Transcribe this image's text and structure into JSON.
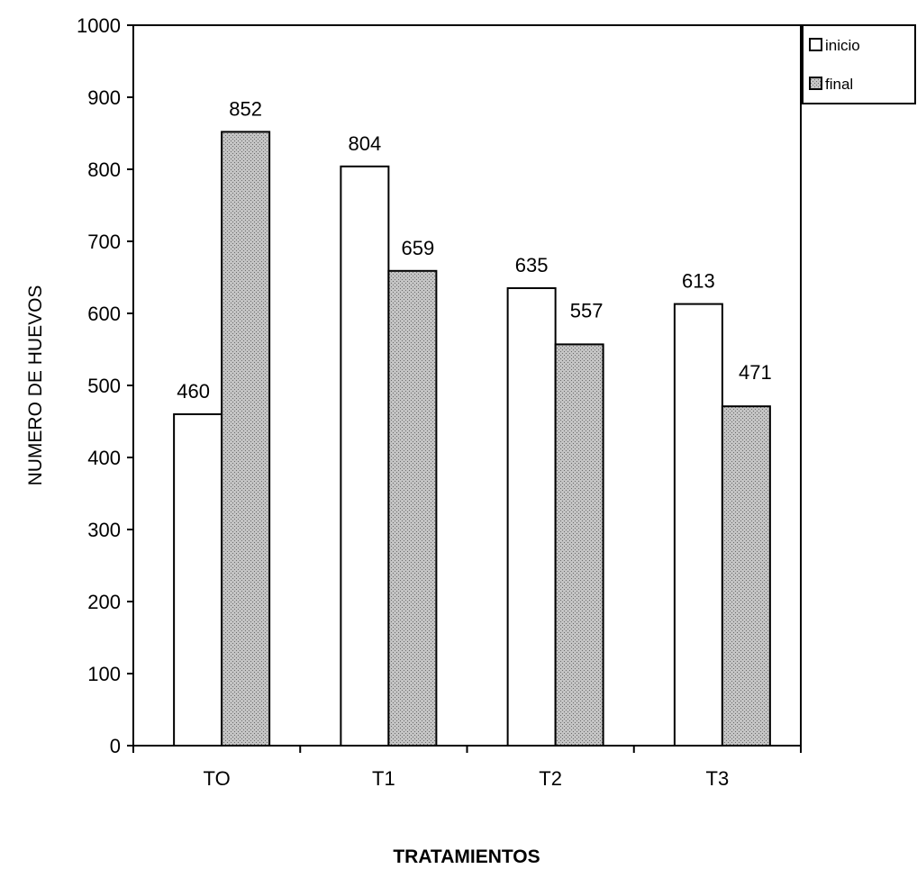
{
  "chart_data": {
    "type": "bar",
    "title": "",
    "xlabel": "TRATAMIENTOS",
    "ylabel": "NUMERO DE HUEVOS",
    "categories": [
      "TO",
      "T1",
      "T2",
      "T3"
    ],
    "series": [
      {
        "name": "inicio",
        "values": [
          460,
          804,
          635,
          613
        ],
        "color": "#ffffff"
      },
      {
        "name": "final",
        "values": [
          852,
          659,
          557,
          471
        ],
        "color": "#b8b8b8"
      }
    ],
    "ylim": [
      0,
      1000
    ],
    "yticks": [
      0,
      100,
      200,
      300,
      400,
      500,
      600,
      700,
      800,
      900,
      1000
    ],
    "grid": false,
    "legend": "top-right",
    "data_labels": true
  }
}
